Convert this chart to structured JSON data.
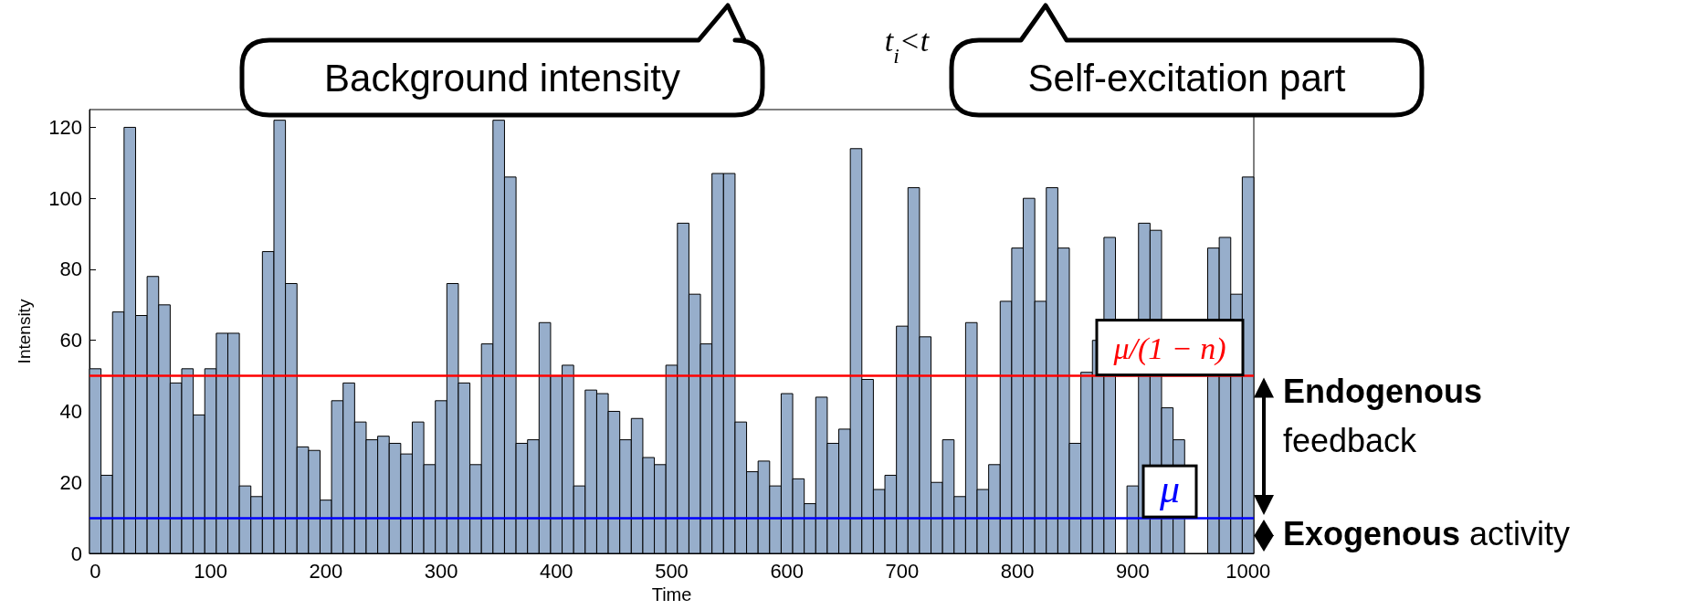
{
  "chart_data": {
    "type": "histogram",
    "xlabel": "Time",
    "ylabel": "Intensity",
    "bins": [
      -5,
      5,
      15,
      25,
      35,
      45,
      55,
      65,
      75,
      85,
      95,
      105,
      115,
      125,
      135,
      145,
      155,
      165,
      175,
      185,
      195,
      205,
      215,
      225,
      235,
      245,
      255,
      265,
      275,
      285,
      295,
      305,
      315,
      325,
      335,
      345,
      355,
      365,
      375,
      385,
      395,
      405,
      415,
      425,
      435,
      445,
      455,
      465,
      475,
      485,
      495,
      505,
      515,
      525,
      535,
      545,
      555,
      565,
      575,
      585,
      595,
      605,
      615,
      625,
      635,
      645,
      655,
      665,
      675,
      685,
      695,
      705,
      715,
      725,
      735,
      745,
      755,
      765,
      775,
      785,
      795,
      805,
      815,
      825,
      835,
      845,
      855,
      865,
      875,
      885,
      895,
      905,
      915,
      925,
      935,
      945,
      955,
      965,
      975,
      985,
      995,
      1005
    ],
    "values": [
      52,
      22,
      68,
      120,
      67,
      78,
      70,
      48,
      52,
      39,
      52,
      62,
      62,
      19,
      16,
      85,
      122,
      76,
      30,
      29,
      15,
      43,
      48,
      37,
      32,
      33,
      31,
      28,
      37,
      25,
      43,
      76,
      48,
      25,
      59,
      122,
      106,
      31,
      32,
      65,
      50,
      53,
      19,
      46,
      45,
      40,
      32,
      38,
      27,
      25,
      53,
      93,
      73,
      59,
      107,
      107,
      37,
      23,
      26,
      19,
      45,
      21,
      14,
      44,
      31,
      35,
      114,
      49,
      18,
      22,
      64,
      103,
      61,
      20,
      32,
      16,
      65,
      18,
      25,
      71,
      86,
      100,
      71,
      103,
      86,
      31,
      51,
      60,
      89,
      null,
      19,
      93,
      91,
      41,
      32,
      null,
      null,
      86,
      89,
      73,
      106
    ],
    "color": "#97aecb",
    "xlim": [
      -5,
      1005
    ],
    "xticks": [
      0,
      100,
      200,
      300,
      400,
      500,
      600,
      700,
      800,
      900,
      1000
    ],
    "ylim": [
      0,
      125
    ],
    "yticks": [
      0,
      20,
      40,
      60,
      80,
      100,
      120
    ],
    "grid": false,
    "ref_lines": [
      {
        "axis": "y",
        "value": 50,
        "label": "μ/(1 − n)",
        "color": "#ff0000"
      },
      {
        "axis": "y",
        "value": 10,
        "label": "μ",
        "color": "#0000ff"
      }
    ],
    "annotations": [
      "Background intensity",
      "Self-excitation part",
      "t$_{i}$<t",
      "Endogenous feedback",
      "Exogenous activity"
    ]
  }
}
